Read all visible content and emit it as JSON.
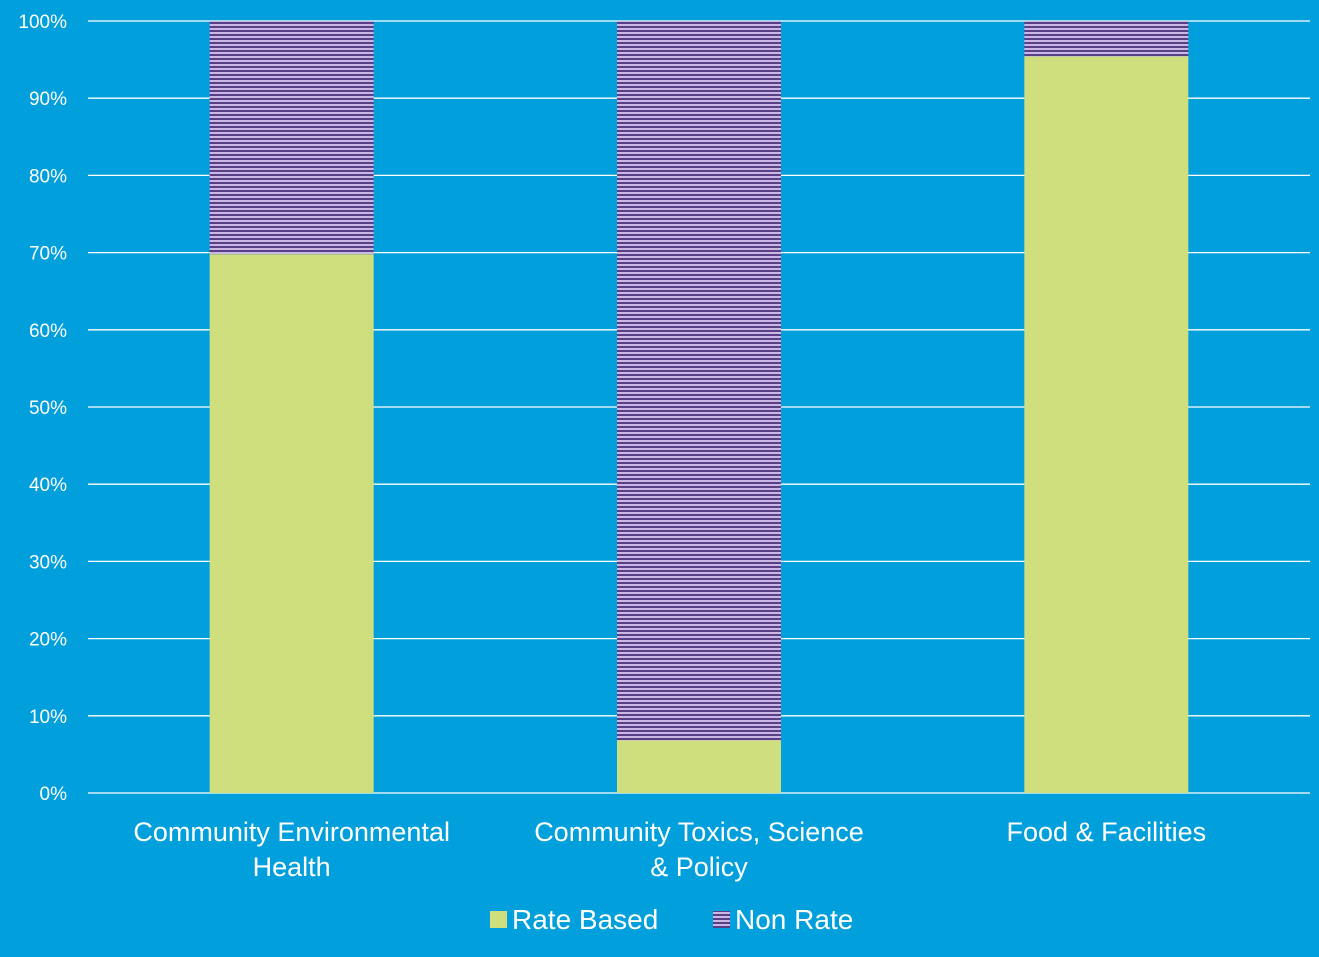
{
  "chart_data": {
    "type": "bar",
    "stacked": true,
    "percent": true,
    "categories": [
      [
        "Community Environmental",
        "Health"
      ],
      [
        "Community Toxics, Science",
        "& Policy"
      ],
      [
        "Food & Facilities"
      ]
    ],
    "series": [
      {
        "name": "Rate Based",
        "values": [
          69.8,
          6.8,
          95.4
        ],
        "color": "#cfdf7d",
        "pattern": "solid"
      },
      {
        "name": "Non Rate",
        "values": [
          30.2,
          93.2,
          4.6
        ],
        "color": "#8a6cae",
        "pattern": "horizontal-stripes"
      }
    ],
    "yticks": [
      "0%",
      "10%",
      "20%",
      "30%",
      "40%",
      "50%",
      "60%",
      "70%",
      "80%",
      "90%",
      "100%"
    ],
    "ylim": [
      0,
      100
    ],
    "grid": true,
    "legend_position": "bottom",
    "colors": {
      "background": "#019fdb",
      "gridline": "#ffffff",
      "text": "#ffffff",
      "stripe_light": "#c9b8e3",
      "stripe_dark": "#5a3f87"
    }
  }
}
